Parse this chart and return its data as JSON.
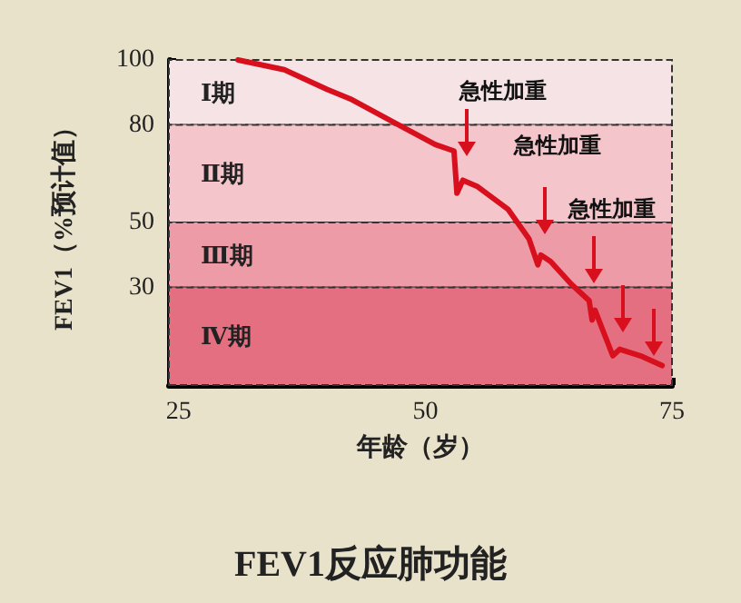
{
  "chart_data": {
    "type": "line",
    "title": "FEV1反应肺功能",
    "xlabel": "年龄（岁）",
    "ylabel": "FEV1（%预计值）",
    "x": [
      31,
      35.7,
      40,
      42.4,
      46.7,
      51,
      52.9,
      53.2,
      53.8,
      55.3,
      58.4,
      60.5,
      61.4,
      61.7,
      62.7,
      64.8,
      66.6,
      66.9,
      67.2,
      68.1,
      69,
      69.7,
      71.8,
      74
    ],
    "series": [
      {
        "color": "#d8101e",
        "values": [
          100,
          97,
          91,
          88,
          81,
          74,
          72,
          59,
          63,
          61,
          54,
          45,
          37,
          40,
          38,
          31,
          26,
          20,
          23,
          16,
          9,
          11,
          9,
          6
        ]
      }
    ],
    "xlim": [
      24,
      75
    ],
    "ylim": [
      0,
      100
    ],
    "xticks": [
      25,
      50,
      75
    ],
    "yticks": [
      100,
      80,
      50,
      30
    ],
    "bands": [
      {
        "axis": "y",
        "from": 80,
        "to": 100,
        "label": "Ⅰ期",
        "color": "#f6e3e5"
      },
      {
        "axis": "y",
        "from": 50,
        "to": 80,
        "label": "Ⅱ期",
        "color": "#f4c5cb"
      },
      {
        "axis": "y",
        "from": 30,
        "to": 50,
        "label": "Ⅲ期",
        "color": "#ec9ba7"
      },
      {
        "axis": "y",
        "from": 0,
        "to": 30,
        "label": "Ⅳ期",
        "color": "#e36f81"
      }
    ],
    "annotations": [
      "急性加重",
      "急性加重",
      "急性加重"
    ],
    "marker": "none",
    "line_style": "solid"
  }
}
